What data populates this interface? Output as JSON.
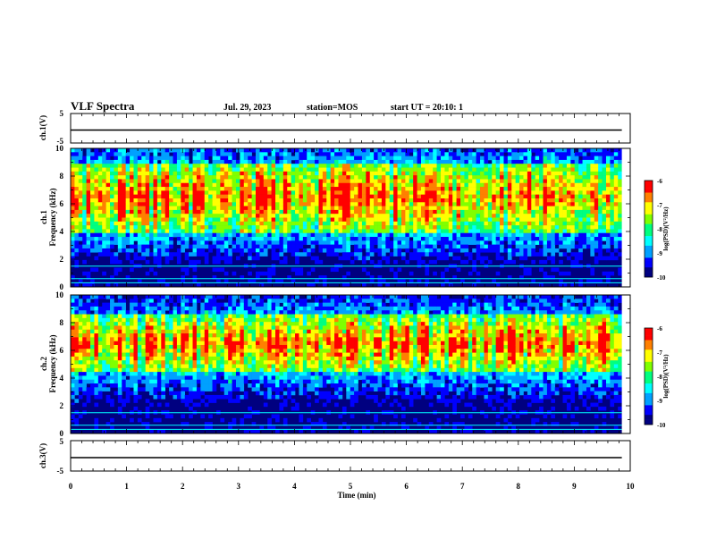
{
  "header": {
    "title": "VLF Spectra",
    "date": "Jul. 29, 2023",
    "station": "station=MOS",
    "start": "start UT = 20:10: 1"
  },
  "chart_data": [
    {
      "type": "line",
      "panel": "ch1-waveform",
      "ylabel": "ch.1(V)",
      "ylim": [
        -5,
        5
      ],
      "yticks": [
        "5",
        "-5"
      ],
      "x": [
        0,
        9.85
      ],
      "values": [
        0,
        0
      ],
      "color": "#000000"
    },
    {
      "type": "heatmap",
      "panel": "ch1-spectrogram",
      "ylabel": "ch.1\nFrequency (kHz)",
      "ylim": [
        0,
        10
      ],
      "yticks": [
        "0",
        "2",
        "4",
        "6",
        "8",
        "10"
      ],
      "xlim": [
        0,
        10
      ],
      "data_end_min": 9.85,
      "band_khz": [
        4,
        9
      ],
      "colorbar": {
        "label": "log(PSD)(V²/Hz)",
        "range": [
          -10,
          -6
        ],
        "ticks": [
          "-6",
          "-7",
          "-8",
          "-9",
          "-10"
        ]
      },
      "colormap": [
        "#000080",
        "#0000ff",
        "#00a0ff",
        "#00ffff",
        "#00ff80",
        "#80ff00",
        "#ffff00",
        "#ff8000",
        "#ff0000",
        "#ffffff"
      ]
    },
    {
      "type": "heatmap",
      "panel": "ch2-spectrogram",
      "ylabel": "ch.2\nFrequency (kHz)",
      "ylim": [
        0,
        10
      ],
      "yticks": [
        "0",
        "2",
        "4",
        "6",
        "8",
        "10"
      ],
      "xlim": [
        0,
        10
      ],
      "data_end_min": 9.85,
      "band_khz": [
        4.5,
        8.5
      ],
      "colorbar": {
        "label": "log(PSD)(V²/Hz)",
        "range": [
          -10,
          -6
        ],
        "ticks": [
          "-6",
          "-7",
          "-8",
          "-9",
          "-10"
        ]
      },
      "colormap": [
        "#000080",
        "#0000ff",
        "#00a0ff",
        "#00ffff",
        "#00ff80",
        "#80ff00",
        "#ffff00",
        "#ff8000",
        "#ff0000",
        "#ffffff"
      ]
    },
    {
      "type": "line",
      "panel": "ch3-waveform",
      "ylabel": "ch.3(V)",
      "ylim": [
        -5,
        5
      ],
      "yticks": [
        "5",
        "-5"
      ],
      "x": [
        0,
        9.85
      ],
      "values": [
        0,
        0
      ],
      "color": "#000000"
    }
  ],
  "xaxis": {
    "label": "Time (min)",
    "range": [
      0,
      10
    ],
    "ticks": [
      "0",
      "1",
      "2",
      "3",
      "4",
      "5",
      "6",
      "7",
      "8",
      "9",
      "10"
    ]
  }
}
